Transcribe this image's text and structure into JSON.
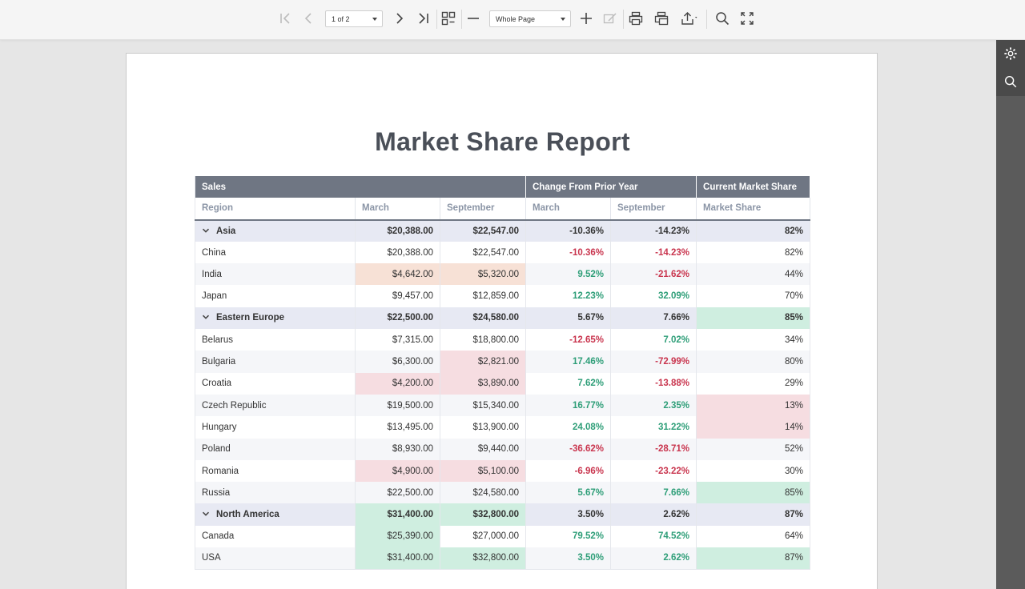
{
  "toolbar": {
    "page_selector": "1 of 2",
    "zoom_selector": "Whole Page"
  },
  "report": {
    "title": "Market Share Report",
    "header_groups": [
      "Sales",
      "Change From Prior Year",
      "Current Market Share"
    ],
    "columns": [
      "Region",
      "March",
      "September",
      "March",
      "September",
      "Market Share"
    ],
    "rows": [
      {
        "type": "group",
        "region": "Asia",
        "march": "$20,388.00",
        "september": "$22,547.00",
        "chg_march": "-10.36%",
        "chg_sept": "-14.23%",
        "share": "82%"
      },
      {
        "type": "child",
        "region": "China",
        "march": "$20,388.00",
        "september": "$22,547.00",
        "chg_march": "-10.36%",
        "chg_sept": "-14.23%",
        "share": "82%"
      },
      {
        "type": "child",
        "region": "India",
        "march": "$4,642.00",
        "september": "$5,320.00",
        "chg_march": "9.52%",
        "chg_sept": "-21.62%",
        "share": "44%"
      },
      {
        "type": "child",
        "region": "Japan",
        "march": "$9,457.00",
        "september": "$12,859.00",
        "chg_march": "12.23%",
        "chg_sept": "32.09%",
        "share": "70%"
      },
      {
        "type": "group",
        "region": "Eastern Europe",
        "march": "$22,500.00",
        "september": "$24,580.00",
        "chg_march": "5.67%",
        "chg_sept": "7.66%",
        "share": "85%"
      },
      {
        "type": "child",
        "region": "Belarus",
        "march": "$7,315.00",
        "september": "$18,800.00",
        "chg_march": "-12.65%",
        "chg_sept": "7.02%",
        "share": "34%"
      },
      {
        "type": "child",
        "region": "Bulgaria",
        "march": "$6,300.00",
        "september": "$2,821.00",
        "chg_march": "17.46%",
        "chg_sept": "-72.99%",
        "share": "80%"
      },
      {
        "type": "child",
        "region": "Croatia",
        "march": "$4,200.00",
        "september": "$3,890.00",
        "chg_march": "7.62%",
        "chg_sept": "-13.88%",
        "share": "29%"
      },
      {
        "type": "child",
        "region": "Czech Republic",
        "march": "$19,500.00",
        "september": "$15,340.00",
        "chg_march": "16.77%",
        "chg_sept": "2.35%",
        "share": "13%"
      },
      {
        "type": "child",
        "region": "Hungary",
        "march": "$13,495.00",
        "september": "$13,900.00",
        "chg_march": "24.08%",
        "chg_sept": "31.22%",
        "share": "14%"
      },
      {
        "type": "child",
        "region": "Poland",
        "march": "$8,930.00",
        "september": "$9,440.00",
        "chg_march": "-36.62%",
        "chg_sept": "-28.71%",
        "share": "52%"
      },
      {
        "type": "child",
        "region": "Romania",
        "march": "$4,900.00",
        "september": "$5,100.00",
        "chg_march": "-6.96%",
        "chg_sept": "-23.22%",
        "share": "30%"
      },
      {
        "type": "child",
        "region": "Russia",
        "march": "$22,500.00",
        "september": "$24,580.00",
        "chg_march": "5.67%",
        "chg_sept": "7.66%",
        "share": "85%"
      },
      {
        "type": "group",
        "region": "North America",
        "march": "$31,400.00",
        "september": "$32,800.00",
        "chg_march": "3.50%",
        "chg_sept": "2.62%",
        "share": "87%"
      },
      {
        "type": "child",
        "region": "Canada",
        "march": "$25,390.00",
        "september": "$27,000.00",
        "chg_march": "79.52%",
        "chg_sept": "74.52%",
        "share": "64%"
      },
      {
        "type": "child",
        "region": "USA",
        "march": "$31,400.00",
        "september": "$32,800.00",
        "chg_march": "3.50%",
        "chg_sept": "2.62%",
        "share": "87%"
      }
    ]
  },
  "colors": {
    "header_bg": "#6f7683",
    "group_row_bg": "#e7e9f3",
    "negative": "#c9354e",
    "positive": "#2e9e78",
    "highlight_red": "#f6dde1",
    "highlight_green": "#cfeee0",
    "side_panel": "#5b5b5b"
  }
}
